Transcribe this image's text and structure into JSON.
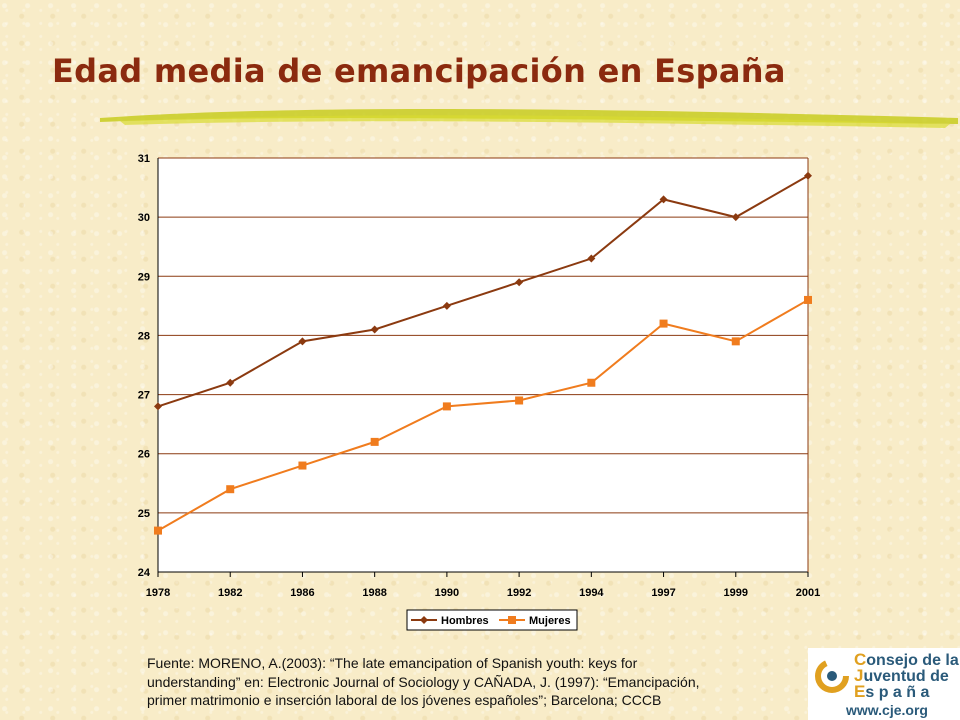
{
  "slide": {
    "title": "Edad media de emancipación en España",
    "source_line1": "Fuente: MORENO, A.(2003): “The late emancipation of Spanish youth: keys for",
    "source_line2": "understanding” en: Electronic Journal of Sociology y CAÑADA, J. (1997): “Emancipación,",
    "source_line3": "primer matrimonio e inserción laboral de los jóvenes españoles”; Barcelona; CCCB"
  },
  "logo": {
    "line1_cap": "C",
    "line1_rest": "onsejo de la",
    "line2_cap": "J",
    "line2_rest": "uventud de",
    "line3_cap": "E",
    "line3_rest": "s p a ñ a",
    "website": "www.cje.org"
  },
  "colors": {
    "title": "#8b2a0f",
    "hombres": "#8b3a10",
    "mujeres": "#f07c1e",
    "gridline": "#8b3a10"
  },
  "chart_data": {
    "type": "line",
    "title": "",
    "xlabel": "",
    "ylabel": "",
    "categories": [
      "1978",
      "1982",
      "1986",
      "1988",
      "1990",
      "1992",
      "1994",
      "1997",
      "1999",
      "2001"
    ],
    "ylim": [
      24,
      31
    ],
    "yticks": [
      24,
      25,
      26,
      27,
      28,
      29,
      30,
      31
    ],
    "grid": true,
    "legend": "bottom",
    "series": [
      {
        "name": "Hombres",
        "marker": "diamond",
        "values": [
          26.8,
          27.2,
          27.9,
          28.1,
          28.5,
          28.9,
          29.3,
          30.3,
          30.0,
          30.7
        ]
      },
      {
        "name": "Mujeres",
        "marker": "square",
        "values": [
          24.7,
          25.4,
          25.8,
          26.2,
          26.8,
          26.9,
          27.2,
          28.2,
          27.9,
          28.6
        ]
      }
    ]
  }
}
